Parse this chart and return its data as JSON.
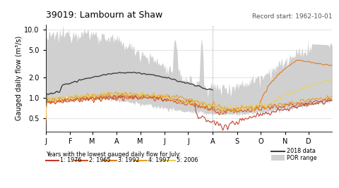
{
  "title": "39019: Lambourn at Shaw",
  "record_start": "Record start: 1962-10-01",
  "ylabel": "Gauged daily flow (m³/s)",
  "xlabel_note": "Years with the lowest gauged daily flow for July:",
  "legend_years": [
    "1: 1976",
    "2: 1965",
    "3: 1992",
    "4: 1997",
    "5: 2006"
  ],
  "year_colors": [
    "#c0392b",
    "#d45020",
    "#e07818",
    "#e8a020",
    "#e8d060"
  ],
  "por_color": "#d0d0d0",
  "data_2018_color": "#404040",
  "ylim_log": [
    0.32,
    12.0
  ],
  "yticks": [
    0.5,
    1.0,
    2.0,
    5.0,
    10.0
  ],
  "months": [
    "J",
    "F",
    "M",
    "A",
    "M",
    "J",
    "J",
    "A",
    "S",
    "O",
    "N",
    "D"
  ],
  "n_days": 365,
  "vline_day": 212
}
